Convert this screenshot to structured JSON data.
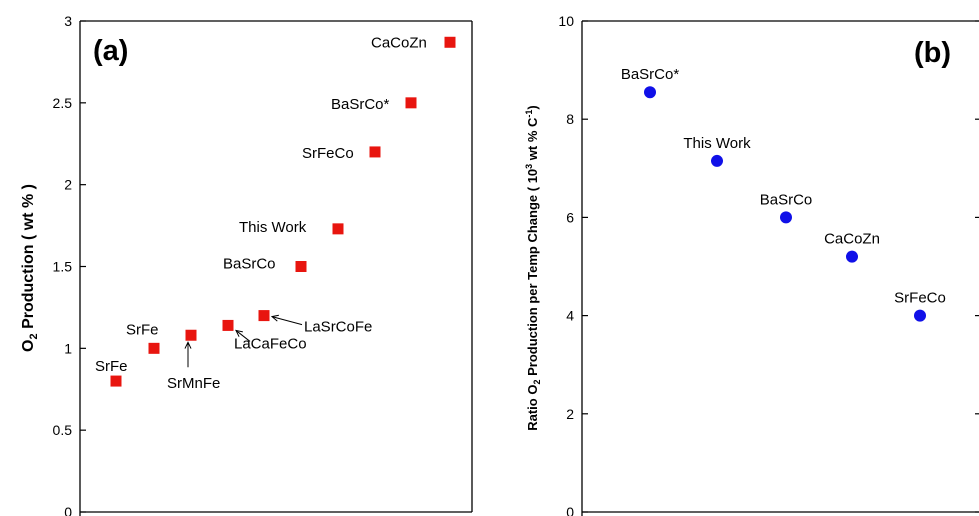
{
  "chart_data": [
    {
      "type": "scatter",
      "panel_tag": "(a)",
      "ylabel": "O₂ Production  ( wt % )",
      "ylabel_main": "O",
      "ylabel_sub": "2",
      "ylabel_rest": " Production  ( wt % )",
      "xlabel": "",
      "ylim": [
        0,
        3
      ],
      "yticks": [
        "0",
        "0.5",
        "1",
        "1.5",
        "2",
        "2.5",
        "3"
      ],
      "marker": "square",
      "marker_color": "#e8150f",
      "points": [
        {
          "label": "SrFe",
          "y": 0.8
        },
        {
          "label": "SrFe",
          "y": 1.0
        },
        {
          "label": "SrMnFe",
          "y": 1.08
        },
        {
          "label": "LaCaFeCo",
          "y": 1.14
        },
        {
          "label": "LaSrCoFe",
          "y": 1.2
        },
        {
          "label": "BaSrCo",
          "y": 1.5
        },
        {
          "label": "This Work",
          "y": 1.73
        },
        {
          "label": "SrFeCo",
          "y": 2.2
        },
        {
          "label": "BaSrCo*",
          "y": 2.5
        },
        {
          "label": "CaCoZn",
          "y": 2.87
        }
      ]
    },
    {
      "type": "scatter",
      "panel_tag": "(b)",
      "ylabel": "Ratio O₂ Production per Temp Change ( 10³ wt % C⁻¹)",
      "ylabel_a": "Ratio O",
      "ylabel_b": "2",
      "ylabel_c": " Production per Temp Change ( 10",
      "ylabel_d": "3",
      "ylabel_e": " wt % C",
      "ylabel_f": "-1",
      "ylabel_g": ")",
      "xlabel": "",
      "ylim": [
        0,
        10
      ],
      "yticks": [
        "0",
        "2",
        "4",
        "6",
        "8",
        "10"
      ],
      "marker": "circle",
      "marker_color": "#1010e8",
      "points": [
        {
          "label": "BaSrCo*",
          "y": 8.55
        },
        {
          "label": "This Work",
          "y": 7.15
        },
        {
          "label": "BaSrCo",
          "y": 6.0
        },
        {
          "label": "CaCoZn",
          "y": 5.2
        },
        {
          "label": "SrFeCo",
          "y": 4.0
        }
      ]
    }
  ]
}
